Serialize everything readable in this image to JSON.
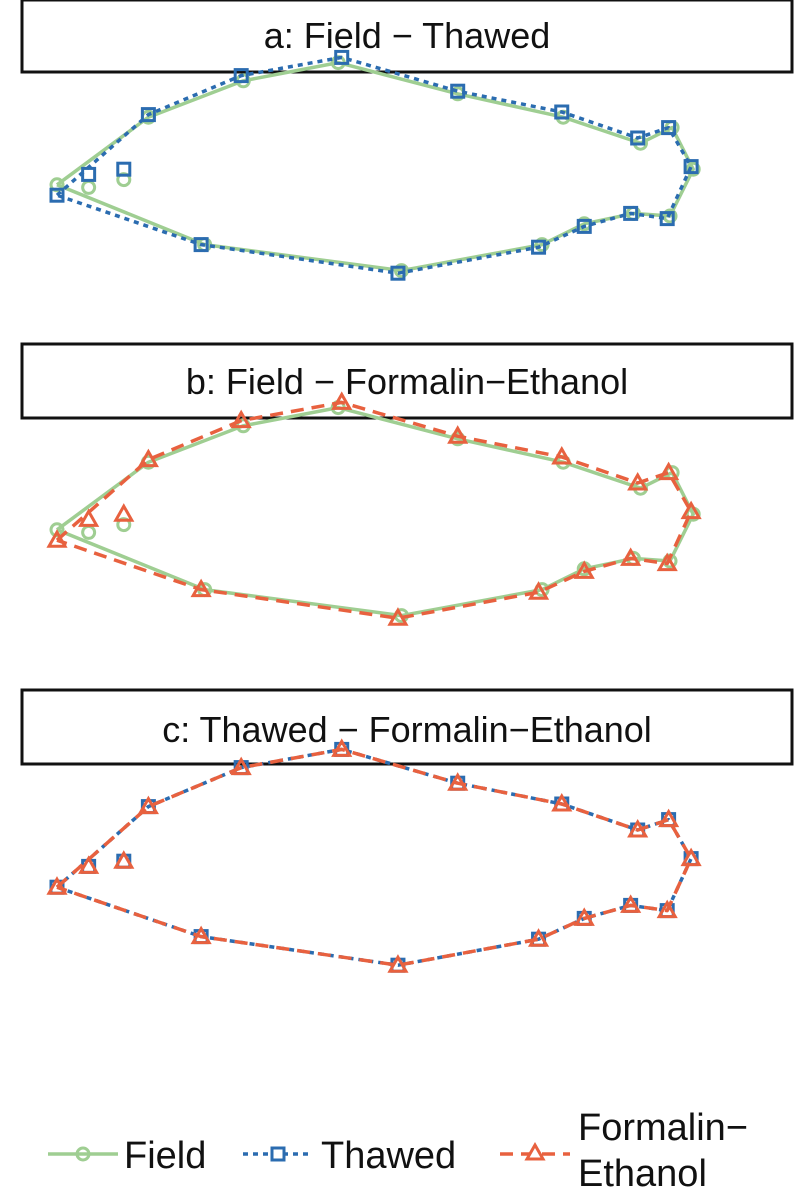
{
  "colors": {
    "field": "#9fce92",
    "thawed": "#2b6cb0",
    "formalin_ethanol": "#e8613f",
    "strip_border": "#111111"
  },
  "chart_data": [
    {
      "type": "scatter",
      "title": "a: Field − Thawed",
      "xlim": [
        0,
        1
      ],
      "ylim": [
        -0.35,
        0.35
      ],
      "grid": false,
      "series": [
        {
          "name": "Field",
          "key": "field",
          "marker": "circle",
          "line": "solid",
          "outline": [
            [
              0.0,
              0.01
            ],
            [
              0.13,
              0.14
            ],
            [
              0.265,
              0.21
            ],
            [
              0.4,
              0.245
            ],
            [
              0.57,
              0.185
            ],
            [
              0.72,
              0.14
            ],
            [
              0.83,
              0.09
            ],
            [
              0.875,
              0.12
            ],
            [
              0.905,
              0.04
            ],
            [
              0.872,
              -0.05
            ],
            [
              0.82,
              -0.045
            ],
            [
              0.75,
              -0.065
            ],
            [
              0.69,
              -0.105
            ],
            [
              0.49,
              -0.155
            ],
            [
              0.21,
              -0.105
            ],
            [
              0.0,
              0.01
            ]
          ],
          "extra": [
            [
              0.045,
              0.005
            ],
            [
              0.095,
              0.02
            ]
          ]
        },
        {
          "name": "Thawed",
          "key": "thawed",
          "marker": "square",
          "line": "dotted",
          "outline": [
            [
              0.0,
              -0.01
            ],
            [
              0.13,
              0.145
            ],
            [
              0.262,
              0.22
            ],
            [
              0.405,
              0.255
            ],
            [
              0.57,
              0.19
            ],
            [
              0.718,
              0.15
            ],
            [
              0.826,
              0.1
            ],
            [
              0.87,
              0.12
            ],
            [
              0.902,
              0.045
            ],
            [
              0.868,
              -0.055
            ],
            [
              0.816,
              -0.045
            ],
            [
              0.75,
              -0.07
            ],
            [
              0.685,
              -0.11
            ],
            [
              0.485,
              -0.16
            ],
            [
              0.205,
              -0.105
            ],
            [
              0.0,
              -0.01
            ]
          ],
          "extra": [
            [
              0.045,
              0.03
            ],
            [
              0.095,
              0.04
            ]
          ]
        }
      ]
    },
    {
      "type": "scatter",
      "title": "b: Field − Formalin−Ethanol",
      "xlim": [
        0,
        1
      ],
      "ylim": [
        -0.35,
        0.35
      ],
      "grid": false,
      "series": [
        {
          "name": "Field",
          "key": "field",
          "marker": "circle",
          "line": "solid",
          "outline": [
            [
              0.0,
              0.01
            ],
            [
              0.13,
              0.14
            ],
            [
              0.265,
              0.21
            ],
            [
              0.4,
              0.245
            ],
            [
              0.57,
              0.185
            ],
            [
              0.72,
              0.14
            ],
            [
              0.83,
              0.09
            ],
            [
              0.875,
              0.12
            ],
            [
              0.905,
              0.04
            ],
            [
              0.872,
              -0.05
            ],
            [
              0.82,
              -0.045
            ],
            [
              0.75,
              -0.065
            ],
            [
              0.69,
              -0.105
            ],
            [
              0.49,
              -0.155
            ],
            [
              0.21,
              -0.105
            ],
            [
              0.0,
              0.01
            ]
          ],
          "extra": [
            [
              0.045,
              0.005
            ],
            [
              0.095,
              0.02
            ]
          ]
        },
        {
          "name": "Formalin−Ethanol",
          "key": "formalin_ethanol",
          "marker": "triangle",
          "line": "dashed",
          "outline": [
            [
              0.0,
              -0.01
            ],
            [
              0.13,
              0.145
            ],
            [
              0.262,
              0.22
            ],
            [
              0.405,
              0.255
            ],
            [
              0.57,
              0.19
            ],
            [
              0.718,
              0.15
            ],
            [
              0.826,
              0.1
            ],
            [
              0.87,
              0.12
            ],
            [
              0.902,
              0.045
            ],
            [
              0.868,
              -0.055
            ],
            [
              0.816,
              -0.045
            ],
            [
              0.75,
              -0.07
            ],
            [
              0.685,
              -0.11
            ],
            [
              0.485,
              -0.16
            ],
            [
              0.205,
              -0.105
            ],
            [
              0.0,
              -0.01
            ]
          ],
          "extra": [
            [
              0.045,
              0.03
            ],
            [
              0.095,
              0.04
            ]
          ]
        }
      ]
    },
    {
      "type": "scatter",
      "title": "c: Thawed − Formalin−Ethanol",
      "xlim": [
        0,
        1
      ],
      "ylim": [
        -0.35,
        0.35
      ],
      "grid": false,
      "series": [
        {
          "name": "Thawed",
          "key": "thawed",
          "marker": "square",
          "line": "dotted",
          "outline": [
            [
              0.0,
              -0.01
            ],
            [
              0.13,
              0.145
            ],
            [
              0.262,
              0.22
            ],
            [
              0.405,
              0.255
            ],
            [
              0.57,
              0.19
            ],
            [
              0.718,
              0.15
            ],
            [
              0.826,
              0.1
            ],
            [
              0.87,
              0.12
            ],
            [
              0.902,
              0.045
            ],
            [
              0.868,
              -0.055
            ],
            [
              0.816,
              -0.045
            ],
            [
              0.75,
              -0.07
            ],
            [
              0.685,
              -0.11
            ],
            [
              0.485,
              -0.16
            ],
            [
              0.205,
              -0.105
            ],
            [
              0.0,
              -0.01
            ]
          ],
          "extra": [
            [
              0.045,
              0.03
            ],
            [
              0.095,
              0.04
            ]
          ]
        },
        {
          "name": "Formalin−Ethanol",
          "key": "formalin_ethanol",
          "marker": "triangle",
          "line": "dashed",
          "outline": [
            [
              0.0,
              -0.01
            ],
            [
              0.13,
              0.145
            ],
            [
              0.262,
              0.22
            ],
            [
              0.405,
              0.255
            ],
            [
              0.57,
              0.19
            ],
            [
              0.718,
              0.15
            ],
            [
              0.826,
              0.1
            ],
            [
              0.87,
              0.12
            ],
            [
              0.902,
              0.045
            ],
            [
              0.868,
              -0.055
            ],
            [
              0.816,
              -0.045
            ],
            [
              0.75,
              -0.07
            ],
            [
              0.685,
              -0.11
            ],
            [
              0.485,
              -0.16
            ],
            [
              0.205,
              -0.105
            ],
            [
              0.0,
              -0.01
            ]
          ],
          "extra": [
            [
              0.045,
              0.03
            ],
            [
              0.095,
              0.04
            ]
          ]
        }
      ]
    }
  ],
  "legend": {
    "position": "bottom",
    "items": [
      {
        "key": "field",
        "label": "Field"
      },
      {
        "key": "thawed",
        "label": "Thawed"
      },
      {
        "key": "formalin_ethanol",
        "label_line1": "Formalin−",
        "label_line2": "Ethanol"
      }
    ]
  }
}
